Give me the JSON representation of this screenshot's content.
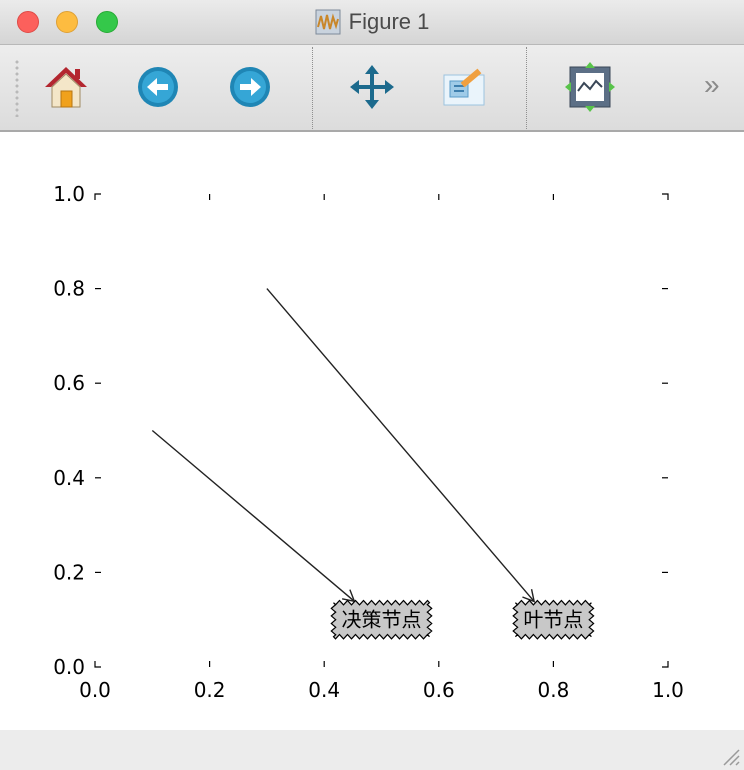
{
  "window": {
    "title": "Figure 1"
  },
  "toolbar": {
    "buttons": [
      {
        "name": "home-icon"
      },
      {
        "name": "back-arrow-icon"
      },
      {
        "name": "forward-arrow-icon"
      },
      {
        "name": "pan-icon"
      },
      {
        "name": "zoom-icon"
      },
      {
        "name": "configure-subplots-icon"
      }
    ],
    "overflow_label": "»"
  },
  "chart_data": {
    "type": "scatter",
    "xlim": [
      0.0,
      1.0
    ],
    "ylim": [
      0.0,
      1.0
    ],
    "xticks": [
      "0.0",
      "0.2",
      "0.4",
      "0.6",
      "0.8",
      "1.0"
    ],
    "yticks": [
      "0.0",
      "0.2",
      "0.4",
      "0.6",
      "0.8",
      "1.0"
    ],
    "grid": false,
    "colors": {
      "axis": "#000000",
      "box_fill": "#c8c8c8"
    },
    "annotations": [
      {
        "label": "决策节点",
        "box_style": "sawtooth",
        "xy": [
          0.5,
          0.1
        ],
        "xytext": [
          0.1,
          0.5
        ]
      },
      {
        "label": "叶节点",
        "box_style": "sawtooth",
        "xy": [
          0.8,
          0.1
        ],
        "xytext": [
          0.3,
          0.8
        ]
      }
    ]
  }
}
